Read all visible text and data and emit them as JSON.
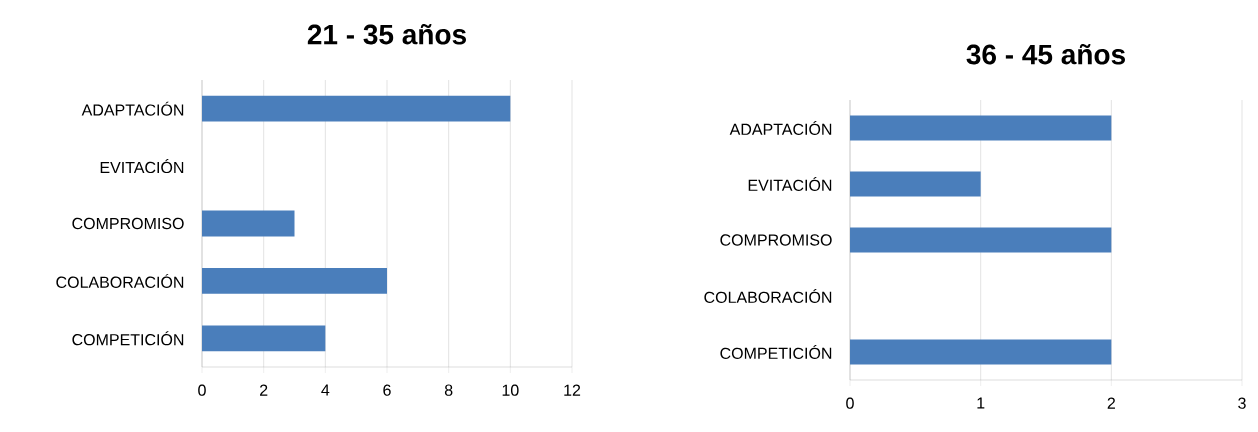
{
  "chart_data": [
    {
      "type": "bar",
      "orientation": "horizontal",
      "title": "21 - 35 años",
      "categories": [
        "ADAPTACIÓN",
        "EVITACIÓN",
        "COMPROMISO",
        "COLABORACIÓN",
        "COMPETICIÓN"
      ],
      "values": [
        10,
        0,
        3,
        6,
        4
      ],
      "color": "#4a7ebb",
      "xlim": [
        0,
        12
      ],
      "xticks": [
        0,
        2,
        4,
        6,
        8,
        10,
        12
      ],
      "grid": "x"
    },
    {
      "type": "bar",
      "orientation": "horizontal",
      "title": "36 - 45 años",
      "categories": [
        "ADAPTACIÓN",
        "EVITACIÓN",
        "COMPROMISO",
        "COLABORACIÓN",
        "COMPETICIÓN"
      ],
      "values": [
        2,
        1,
        2,
        0,
        2
      ],
      "color": "#4a7ebb",
      "xlim": [
        0,
        3
      ],
      "xticks": [
        0,
        1,
        2,
        3
      ],
      "grid": "x"
    }
  ]
}
